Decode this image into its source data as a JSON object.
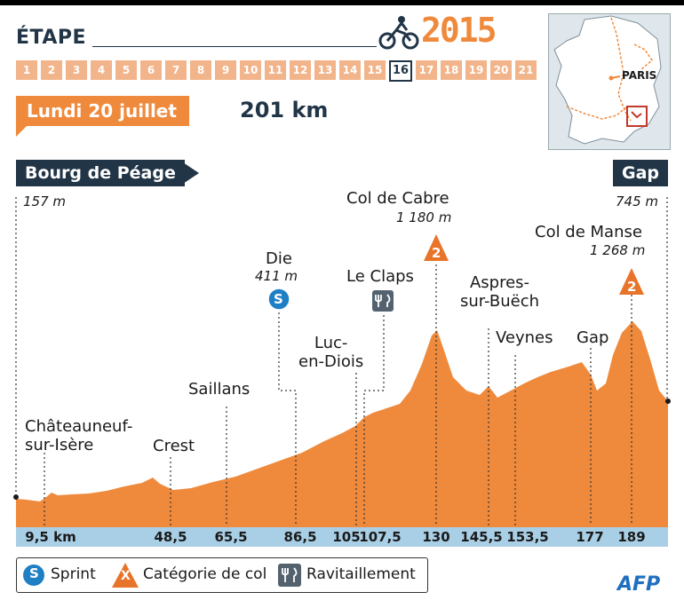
{
  "header": {
    "etape_label": "ÉTAPE",
    "year": "2015",
    "stages": [
      "1",
      "2",
      "3",
      "4",
      "5",
      "6",
      "7",
      "8",
      "9",
      "10",
      "11",
      "12",
      "13",
      "14",
      "15",
      "16",
      "17",
      "18",
      "19",
      "20",
      "21"
    ],
    "active_stage": "16",
    "date": "Lundi 20 juillet",
    "distance": "201 km"
  },
  "map": {
    "label": "PARIS"
  },
  "start": {
    "name": "Bourg de Péage",
    "altitude": "157 m"
  },
  "end": {
    "name": "Gap",
    "altitude": "745 m"
  },
  "places": [
    {
      "name": "Châteauneuf-\nsur-Isère",
      "km": 9.5
    },
    {
      "name": "Crest",
      "km": 48.5
    },
    {
      "name": "Saillans",
      "km": 65.5
    },
    {
      "name": "Die",
      "km": 86.5,
      "altitude": "411 m",
      "marker": "sprint"
    },
    {
      "name": "Luc-\nen-Diois",
      "km": 105
    },
    {
      "name": "Le Claps",
      "km": 107.5,
      "marker": "feed"
    },
    {
      "name": "Col de Cabre",
      "km": 130,
      "altitude": "1 180 m",
      "marker": "col",
      "category": "2"
    },
    {
      "name": "Aspres-\nsur-Buëch",
      "km": 145.5
    },
    {
      "name": "Veynes",
      "km": 153.5
    },
    {
      "name": "Gap",
      "km": 177
    },
    {
      "name": "Col de Manse",
      "km": 189,
      "altitude": "1 268 m",
      "marker": "col",
      "category": "2"
    }
  ],
  "km_labels": [
    "9,5 km",
    "48,5",
    "65,5",
    "86,5",
    "105",
    "107,5",
    "130",
    "145,5",
    "153,5",
    "177",
    "189"
  ],
  "legend": {
    "sprint_icon": "S",
    "sprint": "Sprint",
    "col_icon": "X",
    "col": "Catégorie de col",
    "feed": "Ravitaillement"
  },
  "credit": "AFP",
  "colors": {
    "profile": "#ef8a3c",
    "navy": "#213547",
    "km_bar": "#a9cfe6",
    "sprint": "#1f7fc4"
  }
}
